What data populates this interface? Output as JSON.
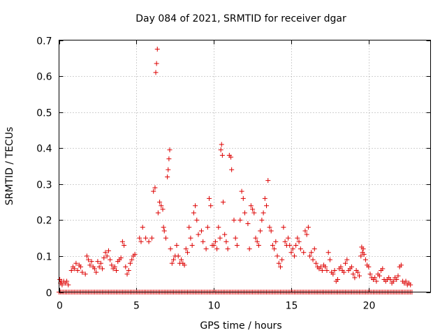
{
  "chart_data": {
    "type": "scatter",
    "title": "Day 084 of 2021, SRMTID for receiver dgar",
    "xlabel": "GPS time / hours",
    "ylabel": "SRMTID / TECUs",
    "xlim": [
      0,
      24
    ],
    "ylim": [
      0,
      0.7
    ],
    "xticks": [
      "0",
      "5",
      "10",
      "15",
      "20"
    ],
    "yticks": [
      "0",
      "0.1",
      "0.2",
      "0.3",
      "0.4",
      "0.5",
      "0.6",
      "0.7"
    ],
    "xtick_values": [
      0,
      5,
      10,
      15,
      20
    ],
    "ytick_values": [
      0,
      0.1,
      0.2,
      0.3,
      0.4,
      0.5,
      0.6,
      0.7
    ],
    "grid": true,
    "marker": "+",
    "color": "#dd0000",
    "series": [
      {
        "name": "SRMTID",
        "points": [
          [
            0.05,
            0.035
          ],
          [
            0.1,
            0.025
          ],
          [
            0.15,
            0.03
          ],
          [
            0.2,
            0.02
          ],
          [
            0.3,
            0.03
          ],
          [
            0.4,
            0.025
          ],
          [
            0.5,
            0.03
          ],
          [
            0.6,
            0.02
          ],
          [
            0.8,
            0.06
          ],
          [
            0.9,
            0.07
          ],
          [
            1.0,
            0.065
          ],
          [
            1.1,
            0.08
          ],
          [
            1.2,
            0.06
          ],
          [
            1.3,
            0.075
          ],
          [
            1.4,
            0.07
          ],
          [
            1.5,
            0.055
          ],
          [
            1.7,
            0.05
          ],
          [
            1.8,
            0.1
          ],
          [
            1.9,
            0.09
          ],
          [
            2.0,
            0.075
          ],
          [
            2.1,
            0.085
          ],
          [
            2.2,
            0.07
          ],
          [
            2.3,
            0.065
          ],
          [
            2.4,
            0.055
          ],
          [
            2.5,
            0.085
          ],
          [
            2.6,
            0.07
          ],
          [
            2.7,
            0.08
          ],
          [
            2.8,
            0.065
          ],
          [
            2.9,
            0.095
          ],
          [
            3.0,
            0.11
          ],
          [
            3.1,
            0.1
          ],
          [
            3.2,
            0.115
          ],
          [
            3.3,
            0.09
          ],
          [
            3.4,
            0.075
          ],
          [
            3.5,
            0.065
          ],
          [
            3.6,
            0.07
          ],
          [
            3.7,
            0.06
          ],
          [
            3.8,
            0.085
          ],
          [
            3.9,
            0.09
          ],
          [
            4.0,
            0.095
          ],
          [
            4.1,
            0.14
          ],
          [
            4.2,
            0.13
          ],
          [
            4.3,
            0.07
          ],
          [
            4.4,
            0.05
          ],
          [
            4.5,
            0.06
          ],
          [
            4.6,
            0.08
          ],
          [
            4.7,
            0.09
          ],
          [
            4.8,
            0.1
          ],
          [
            4.9,
            0.105
          ],
          [
            5.2,
            0.15
          ],
          [
            5.3,
            0.14
          ],
          [
            5.4,
            0.18
          ],
          [
            5.6,
            0.15
          ],
          [
            5.8,
            0.14
          ],
          [
            6.0,
            0.15
          ],
          [
            6.1,
            0.28
          ],
          [
            6.2,
            0.29
          ],
          [
            6.25,
            0.61
          ],
          [
            6.3,
            0.635
          ],
          [
            6.35,
            0.675
          ],
          [
            6.4,
            0.22
          ],
          [
            6.5,
            0.25
          ],
          [
            6.6,
            0.24
          ],
          [
            6.7,
            0.23
          ],
          [
            6.75,
            0.18
          ],
          [
            6.8,
            0.17
          ],
          [
            6.9,
            0.15
          ],
          [
            7.0,
            0.32
          ],
          [
            7.05,
            0.34
          ],
          [
            7.1,
            0.37
          ],
          [
            7.15,
            0.395
          ],
          [
            7.2,
            0.12
          ],
          [
            7.3,
            0.08
          ],
          [
            7.4,
            0.09
          ],
          [
            7.5,
            0.1
          ],
          [
            7.6,
            0.13
          ],
          [
            7.7,
            0.1
          ],
          [
            7.8,
            0.08
          ],
          [
            7.9,
            0.09
          ],
          [
            8.0,
            0.08
          ],
          [
            8.1,
            0.075
          ],
          [
            8.2,
            0.12
          ],
          [
            8.3,
            0.11
          ],
          [
            8.4,
            0.18
          ],
          [
            8.5,
            0.15
          ],
          [
            8.6,
            0.13
          ],
          [
            8.7,
            0.22
          ],
          [
            8.8,
            0.24
          ],
          [
            8.9,
            0.2
          ],
          [
            9.0,
            0.16
          ],
          [
            9.2,
            0.17
          ],
          [
            9.3,
            0.14
          ],
          [
            9.5,
            0.12
          ],
          [
            9.6,
            0.18
          ],
          [
            9.7,
            0.26
          ],
          [
            9.8,
            0.24
          ],
          [
            9.9,
            0.13
          ],
          [
            10.0,
            0.13
          ],
          [
            10.1,
            0.14
          ],
          [
            10.2,
            0.12
          ],
          [
            10.3,
            0.18
          ],
          [
            10.4,
            0.15
          ],
          [
            10.45,
            0.395
          ],
          [
            10.5,
            0.41
          ],
          [
            10.55,
            0.38
          ],
          [
            10.6,
            0.25
          ],
          [
            10.7,
            0.16
          ],
          [
            10.8,
            0.14
          ],
          [
            10.9,
            0.12
          ],
          [
            11.0,
            0.38
          ],
          [
            11.1,
            0.375
          ],
          [
            11.15,
            0.34
          ],
          [
            11.3,
            0.2
          ],
          [
            11.4,
            0.15
          ],
          [
            11.5,
            0.13
          ],
          [
            11.7,
            0.2
          ],
          [
            11.8,
            0.28
          ],
          [
            11.9,
            0.26
          ],
          [
            12.0,
            0.22
          ],
          [
            12.2,
            0.19
          ],
          [
            12.3,
            0.12
          ],
          [
            12.4,
            0.24
          ],
          [
            12.5,
            0.23
          ],
          [
            12.6,
            0.22
          ],
          [
            12.7,
            0.15
          ],
          [
            12.8,
            0.14
          ],
          [
            12.9,
            0.13
          ],
          [
            13.0,
            0.17
          ],
          [
            13.1,
            0.2
          ],
          [
            13.2,
            0.22
          ],
          [
            13.3,
            0.26
          ],
          [
            13.4,
            0.24
          ],
          [
            13.5,
            0.31
          ],
          [
            13.6,
            0.18
          ],
          [
            13.7,
            0.17
          ],
          [
            13.8,
            0.13
          ],
          [
            13.9,
            0.12
          ],
          [
            14.0,
            0.14
          ],
          [
            14.1,
            0.1
          ],
          [
            14.2,
            0.08
          ],
          [
            14.3,
            0.07
          ],
          [
            14.4,
            0.09
          ],
          [
            14.5,
            0.18
          ],
          [
            14.6,
            0.14
          ],
          [
            14.7,
            0.13
          ],
          [
            14.8,
            0.15
          ],
          [
            14.9,
            0.13
          ],
          [
            15.0,
            0.11
          ],
          [
            15.1,
            0.12
          ],
          [
            15.2,
            0.1
          ],
          [
            15.3,
            0.13
          ],
          [
            15.4,
            0.15
          ],
          [
            15.5,
            0.14
          ],
          [
            15.6,
            0.12
          ],
          [
            15.8,
            0.11
          ],
          [
            15.9,
            0.17
          ],
          [
            16.0,
            0.16
          ],
          [
            16.1,
            0.18
          ],
          [
            16.2,
            0.1
          ],
          [
            16.3,
            0.11
          ],
          [
            16.4,
            0.09
          ],
          [
            16.5,
            0.12
          ],
          [
            16.6,
            0.08
          ],
          [
            16.7,
            0.07
          ],
          [
            16.8,
            0.065
          ],
          [
            16.9,
            0.07
          ],
          [
            17.0,
            0.06
          ],
          [
            17.1,
            0.075
          ],
          [
            17.2,
            0.07
          ],
          [
            17.3,
            0.06
          ],
          [
            17.4,
            0.11
          ],
          [
            17.5,
            0.09
          ],
          [
            17.6,
            0.055
          ],
          [
            17.7,
            0.05
          ],
          [
            17.8,
            0.06
          ],
          [
            17.9,
            0.03
          ],
          [
            18.0,
            0.035
          ],
          [
            18.1,
            0.065
          ],
          [
            18.2,
            0.07
          ],
          [
            18.3,
            0.06
          ],
          [
            18.4,
            0.055
          ],
          [
            18.5,
            0.08
          ],
          [
            18.6,
            0.09
          ],
          [
            18.7,
            0.06
          ],
          [
            18.8,
            0.065
          ],
          [
            18.9,
            0.07
          ],
          [
            19.0,
            0.05
          ],
          [
            19.1,
            0.04
          ],
          [
            19.2,
            0.06
          ],
          [
            19.3,
            0.055
          ],
          [
            19.4,
            0.045
          ],
          [
            19.5,
            0.1
          ],
          [
            19.55,
            0.125
          ],
          [
            19.6,
            0.11
          ],
          [
            19.65,
            0.12
          ],
          [
            19.7,
            0.105
          ],
          [
            19.8,
            0.09
          ],
          [
            19.9,
            0.075
          ],
          [
            20.0,
            0.07
          ],
          [
            20.1,
            0.05
          ],
          [
            20.2,
            0.04
          ],
          [
            20.3,
            0.035
          ],
          [
            20.4,
            0.04
          ],
          [
            20.5,
            0.03
          ],
          [
            20.6,
            0.05
          ],
          [
            20.7,
            0.045
          ],
          [
            20.8,
            0.06
          ],
          [
            20.9,
            0.065
          ],
          [
            21.0,
            0.035
          ],
          [
            21.1,
            0.03
          ],
          [
            21.2,
            0.035
          ],
          [
            21.3,
            0.04
          ],
          [
            21.4,
            0.035
          ],
          [
            21.5,
            0.025
          ],
          [
            21.6,
            0.03
          ],
          [
            21.7,
            0.04
          ],
          [
            21.8,
            0.035
          ],
          [
            21.9,
            0.045
          ],
          [
            22.0,
            0.07
          ],
          [
            22.1,
            0.075
          ],
          [
            22.2,
            0.03
          ],
          [
            22.3,
            0.025
          ],
          [
            22.4,
            0.03
          ],
          [
            22.5,
            0.02
          ],
          [
            22.6,
            0.025
          ],
          [
            22.7,
            0.02
          ]
        ]
      }
    ],
    "baseline": {
      "value": 0,
      "x_from": 0.0,
      "x_to": 22.8,
      "x_step": 0.1
    }
  }
}
